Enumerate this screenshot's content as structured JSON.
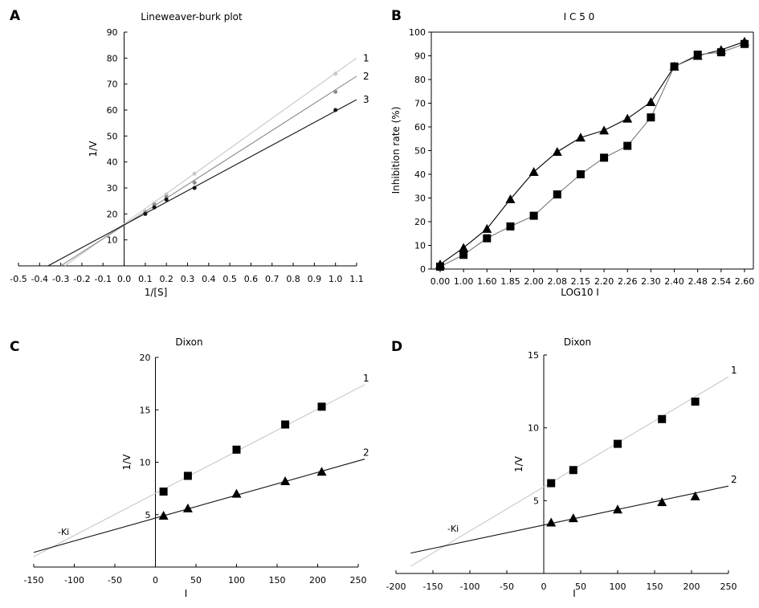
{
  "chart_data": [
    {
      "panel": "A",
      "type": "line",
      "title": "Lineweaver-burk plot",
      "xlabel": "1/[S]",
      "ylabel": "1/V",
      "xlim": [
        -0.5,
        1.1
      ],
      "ylim": [
        0,
        90
      ],
      "xticks": [
        -0.5,
        -0.4,
        -0.3,
        -0.2,
        -0.1,
        0.0,
        0.1,
        0.2,
        0.3,
        0.4,
        0.5,
        0.6,
        0.7,
        0.8,
        0.9,
        1.0,
        1.1
      ],
      "xtick_labels": [
        "-0.5",
        "-0.4",
        "-0.3",
        "-0.2",
        "-0.1",
        "0.0",
        "0.1",
        "0.2",
        "0.3",
        "0.4",
        "0.5",
        "0.6",
        "0.7",
        "0.8",
        "0.9",
        "1.0",
        "1.1"
      ],
      "yticks": [
        10,
        20,
        30,
        40,
        50,
        60,
        70,
        80,
        90
      ],
      "series": [
        {
          "name": "1",
          "color": "#c8c8c8",
          "x": [
            0.1,
            0.143,
            0.2,
            0.333,
            1.0
          ],
          "y": [
            21,
            24,
            27.5,
            35.5,
            74
          ],
          "line_x": [
            -0.28,
            1.1
          ],
          "line_y": [
            0,
            80
          ]
        },
        {
          "name": "2",
          "color": "#8c8c8c",
          "x": [
            0.1,
            0.143,
            0.2,
            0.333,
            1.0
          ],
          "y": [
            20.5,
            23.5,
            26.5,
            32,
            67
          ],
          "line_x": [
            -0.3,
            1.1
          ],
          "line_y": [
            0,
            73
          ]
        },
        {
          "name": "3",
          "color": "#111111",
          "x": [
            0.1,
            0.143,
            0.2,
            0.333,
            1.0
          ],
          "y": [
            20,
            22.5,
            25.5,
            30,
            60
          ],
          "line_x": [
            -0.36,
            1.1
          ],
          "line_y": [
            0,
            64
          ]
        }
      ]
    },
    {
      "panel": "B",
      "type": "line",
      "title": "I C 5 0",
      "xlabel": "LOG10 I",
      "ylabel": "Inhibition rate (%)",
      "ylim": [
        0,
        100
      ],
      "yticks": [
        0,
        10,
        20,
        30,
        40,
        50,
        60,
        70,
        80,
        90,
        100
      ],
      "categories": [
        "0.00",
        "1.00",
        "1.60",
        "1.85",
        "2.00",
        "2.08",
        "2.15",
        "2.20",
        "2.26",
        "2.30",
        "2.40",
        "2.48",
        "2.54",
        "2.60"
      ],
      "series": [
        {
          "marker": "triangle",
          "color": "#000000",
          "values": [
            2,
            9,
            17,
            29.5,
            41,
            49.5,
            55.5,
            58.5,
            63.5,
            70.5,
            85.5,
            90,
            92.5,
            96
          ]
        },
        {
          "marker": "square",
          "color": "#777777",
          "values": [
            1,
            6,
            13,
            18,
            22.5,
            31.5,
            40,
            47,
            52,
            64,
            85.5,
            90.5,
            91.5,
            95
          ]
        }
      ]
    },
    {
      "panel": "C",
      "type": "scatter",
      "title": "Dixon",
      "xlabel": "I",
      "ylabel": "1/V",
      "xlim": [
        -150,
        250
      ],
      "ylim": [
        0,
        20
      ],
      "xticks": [
        -150,
        -100,
        -50,
        0,
        50,
        100,
        150,
        200,
        250
      ],
      "yticks": [
        5,
        10,
        15,
        20
      ],
      "annotation": "-Ki",
      "series": [
        {
          "name": "1",
          "marker": "square",
          "color": "#c8c8c8",
          "x": [
            10,
            40,
            100,
            160,
            205
          ],
          "y": [
            7.2,
            8.7,
            11.2,
            13.6,
            15.3
          ],
          "line_x": [
            -150,
            258
          ],
          "line_y": [
            1.0,
            17.4
          ]
        },
        {
          "name": "2",
          "marker": "triangle",
          "color": "#111111",
          "x": [
            10,
            40,
            100,
            160,
            205
          ],
          "y": [
            4.9,
            5.6,
            7.0,
            8.2,
            9.1
          ],
          "line_x": [
            -150,
            258
          ],
          "line_y": [
            1.4,
            10.3
          ]
        }
      ]
    },
    {
      "panel": "D",
      "type": "scatter",
      "title": "Dixon",
      "xlabel": "I",
      "ylabel": "1/V",
      "xlim": [
        -200,
        250
      ],
      "ylim": [
        0,
        15
      ],
      "xticks": [
        -200,
        -150,
        -100,
        -50,
        0,
        50,
        100,
        150,
        200,
        250
      ],
      "yticks": [
        5,
        10,
        15
      ],
      "annotation": "-Ki",
      "series": [
        {
          "name": "1",
          "marker": "square",
          "color": "#c8c8c8",
          "x": [
            10,
            40,
            100,
            160,
            205
          ],
          "y": [
            6.2,
            7.1,
            8.9,
            10.6,
            11.8
          ],
          "line_x": [
            -180,
            250
          ],
          "line_y": [
            0.5,
            13.5
          ]
        },
        {
          "name": "2",
          "marker": "triangle",
          "color": "#111111",
          "x": [
            10,
            40,
            100,
            160,
            205
          ],
          "y": [
            3.5,
            3.8,
            4.4,
            4.9,
            5.3
          ],
          "line_x": [
            -180,
            250
          ],
          "line_y": [
            1.4,
            6.0
          ]
        }
      ]
    }
  ],
  "panel_labels": [
    "A",
    "B",
    "C",
    "D"
  ]
}
